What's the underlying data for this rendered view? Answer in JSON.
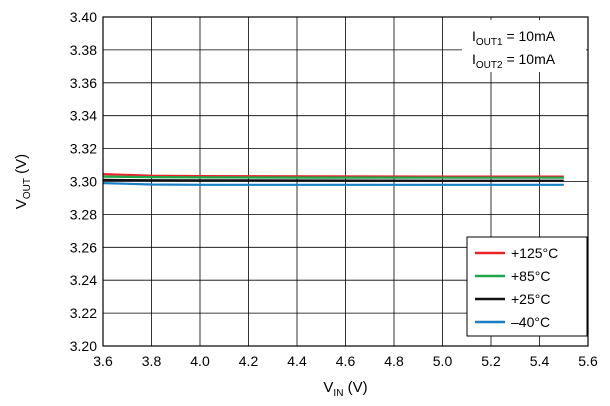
{
  "chart_data": {
    "type": "line",
    "xlabel": {
      "main": "V",
      "sub": "IN",
      "unit": " (V)"
    },
    "ylabel": {
      "main": "V",
      "sub": "OUT",
      "unit": " (V)"
    },
    "xlim": [
      3.6,
      5.6
    ],
    "ylim": [
      3.2,
      3.4
    ],
    "xticks": [
      "3.6",
      "3.8",
      "4.0",
      "4.2",
      "4.4",
      "4.6",
      "4.8",
      "5.0",
      "5.2",
      "5.4",
      "5.6"
    ],
    "yticks": [
      "3.20",
      "3.22",
      "3.24",
      "3.26",
      "3.28",
      "3.30",
      "3.32",
      "3.34",
      "3.36",
      "3.38",
      "3.40"
    ],
    "grid": true,
    "legend_position": "bottom-right",
    "annotation": [
      {
        "main": "I",
        "sub": "OUT1",
        "rest": " = 10mA"
      },
      {
        "main": "I",
        "sub": "OUT2",
        "rest": " = 10mA"
      }
    ],
    "series": [
      {
        "name": "+125°C",
        "color": "#e8232a",
        "x": [
          3.6,
          3.8,
          4.0,
          4.5,
          5.0,
          5.5
        ],
        "y": [
          3.3045,
          3.3035,
          3.3033,
          3.3031,
          3.303,
          3.303
        ]
      },
      {
        "name": "+85°C",
        "color": "#1fa64a",
        "x": [
          3.6,
          3.8,
          4.0,
          4.5,
          5.0,
          5.5
        ],
        "y": [
          3.303,
          3.3027,
          3.3025,
          3.3024,
          3.3023,
          3.3023
        ]
      },
      {
        "name": "+25°C",
        "color": "#111111",
        "x": [
          3.6,
          3.8,
          4.0,
          4.5,
          5.0,
          5.5
        ],
        "y": [
          3.301,
          3.3008,
          3.3007,
          3.3006,
          3.3005,
          3.3005
        ]
      },
      {
        "name": "–40°C",
        "color": "#1a7fc4",
        "x": [
          3.6,
          3.8,
          4.0,
          4.5,
          5.0,
          5.5
        ],
        "y": [
          3.299,
          3.2982,
          3.298,
          3.298,
          3.298,
          3.298
        ]
      }
    ]
  }
}
